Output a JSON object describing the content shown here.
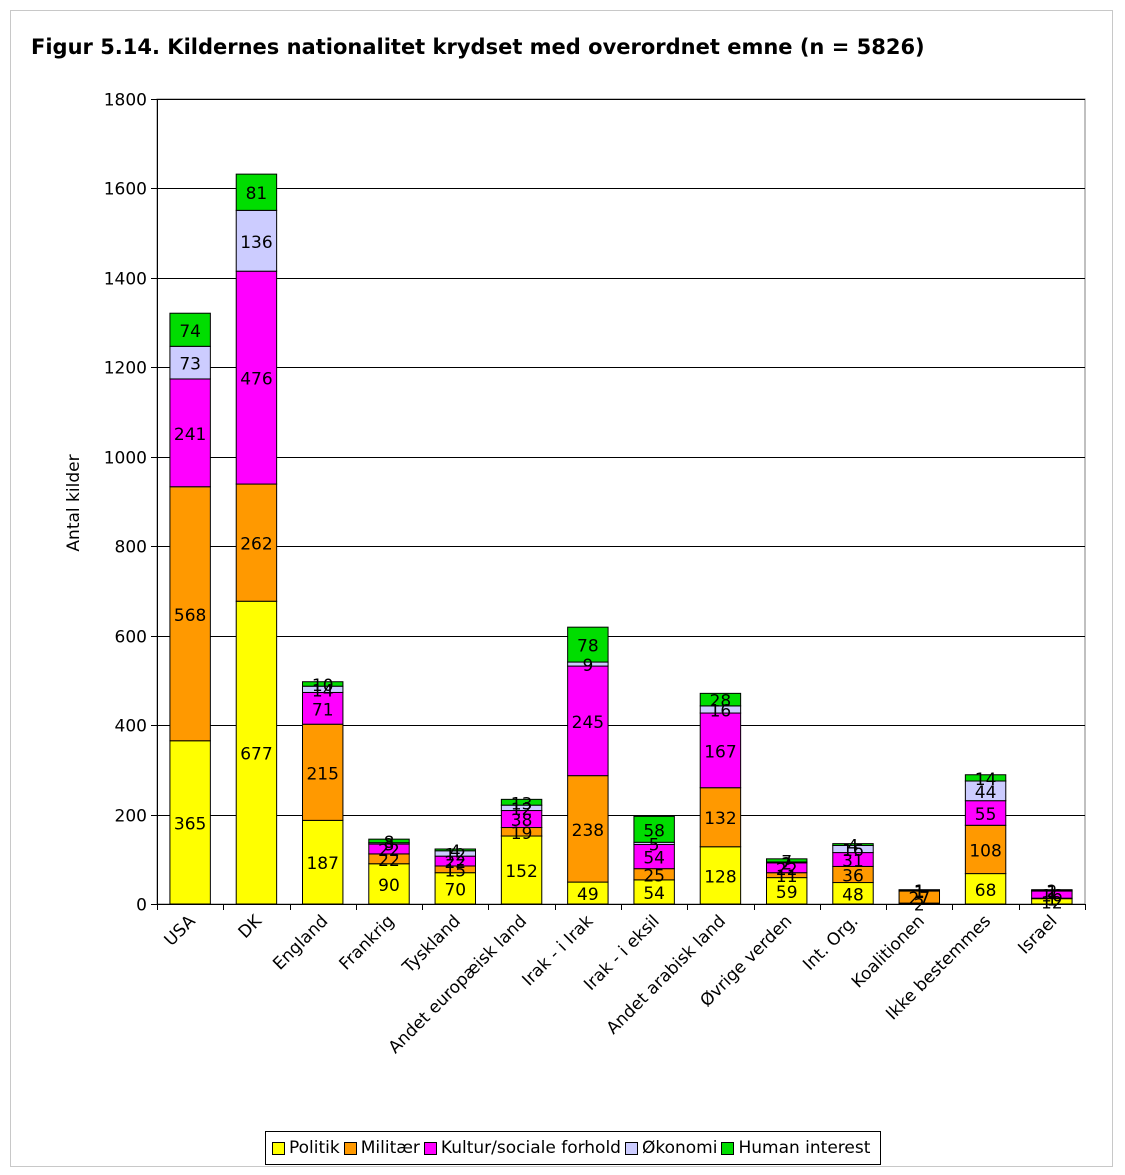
{
  "chart_data": {
    "type": "bar",
    "stacked": true,
    "title": "Figur 5.14. Kildernes nationalitet krydset med overordnet emne (n = 5826)",
    "ylabel": "Antal kilder",
    "xlabel": "",
    "ylim": [
      0,
      1800
    ],
    "yticks": [
      0,
      200,
      400,
      600,
      800,
      1000,
      1200,
      1400,
      1600,
      1800
    ],
    "grid": true,
    "legend_position": "bottom",
    "categories": [
      "USA",
      "DK",
      "England",
      "Frankrig",
      "Tyskland",
      "Andet europæisk land",
      "Irak - i Irak",
      "Irak - i eksil",
      "Andet arabisk land",
      "Øvrige verden",
      "Int. Org.",
      "Koalitionen",
      "Ikke bestemmes",
      "Israel"
    ],
    "series": [
      {
        "name": "Politik",
        "color": "#ffff00",
        "values": [
          365,
          677,
          187,
          90,
          70,
          152,
          49,
          54,
          128,
          59,
          48,
          2,
          68,
          12
        ]
      },
      {
        "name": "Militær",
        "color": "#ff9900",
        "values": [
          568,
          262,
          215,
          22,
          15,
          19,
          238,
          25,
          132,
          11,
          36,
          27,
          108,
          1
        ]
      },
      {
        "name": "Kultur/sociale forhold",
        "color": "#ff00ff",
        "values": [
          241,
          476,
          71,
          22,
          22,
          38,
          245,
          54,
          167,
          22,
          31,
          1,
          55,
          16
        ]
      },
      {
        "name": "Økonomi",
        "color": "#ccccff",
        "values": [
          73,
          136,
          14,
          3,
          12,
          12,
          9,
          5,
          16,
          2,
          16,
          1,
          44,
          1
        ]
      },
      {
        "name": "Human interest",
        "color": "#00dd00",
        "values": [
          74,
          81,
          10,
          8,
          4,
          13,
          78,
          58,
          28,
          7,
          4,
          1,
          14,
          2
        ]
      }
    ]
  }
}
